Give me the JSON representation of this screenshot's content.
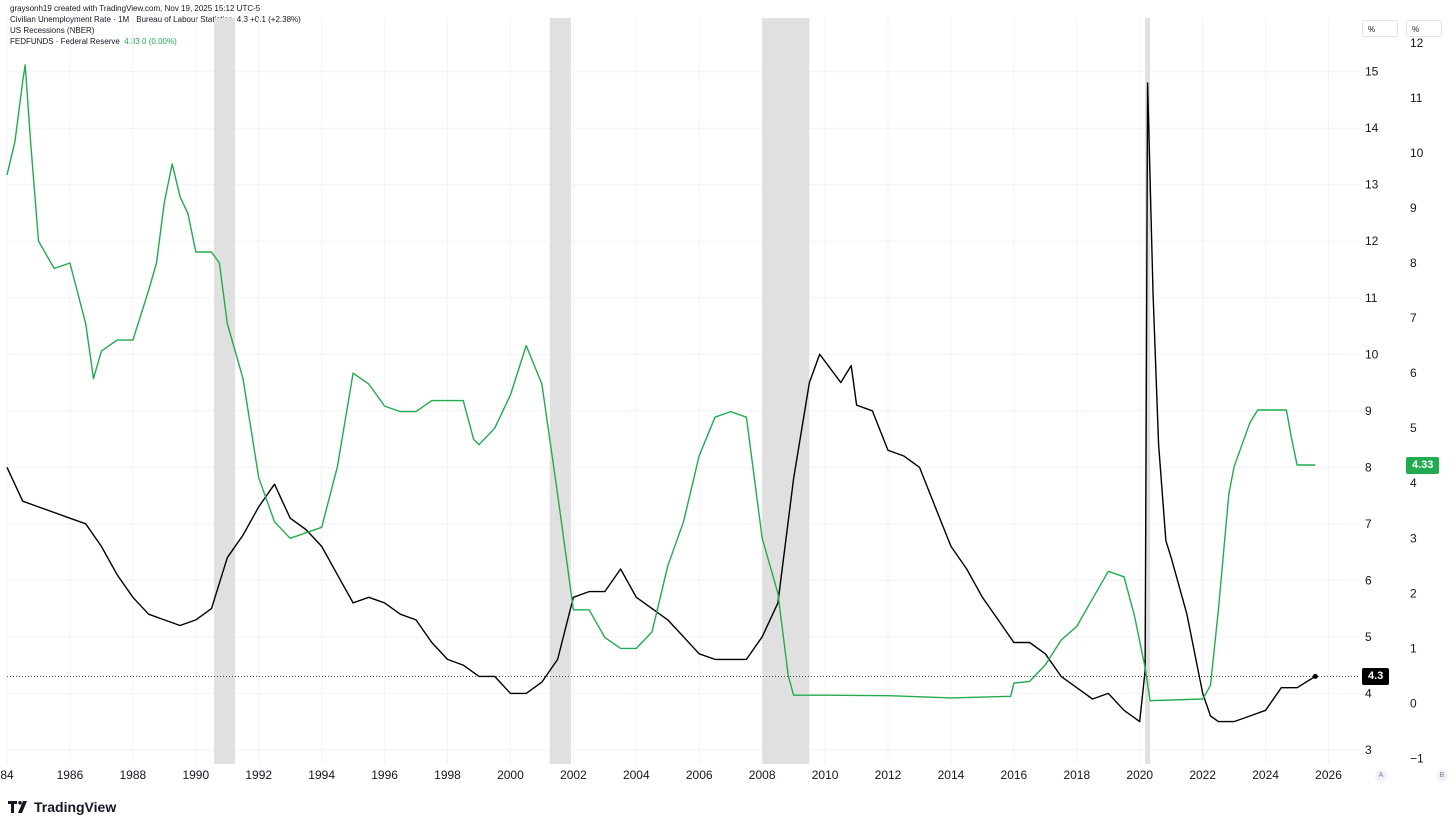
{
  "header": {
    "created_by": "graysonh19 created with TradingView.com, Nov 19, 2025 15:12 UTC-5",
    "series1_label": "Civilian Unemployment Rate · 1M · Bureau of Labour Statistics",
    "series1_values": "4.3  +0.1 (+2.38%)",
    "series2_label": "US Recessions (NBER)",
    "series3_label": "FEDFUNDS · Federal Reserve",
    "series3_values": "4.33  0 (0.00%)"
  },
  "scale_buttons": {
    "left": "%",
    "right": "%"
  },
  "corner_buttons": {
    "a": "A",
    "b": "B"
  },
  "brand": "TradingView",
  "colors": {
    "unemployment": "#000000",
    "fedfunds": "#22ab4e",
    "recession": "#e0e0e0"
  },
  "chart_data": {
    "type": "line",
    "x_range": [
      1984,
      2027
    ],
    "x_ticks": [
      "84",
      "1986",
      "1988",
      "1990",
      "1992",
      "1994",
      "1996",
      "1998",
      "2000",
      "2002",
      "2004",
      "2006",
      "2008",
      "2010",
      "2012",
      "2014",
      "2016",
      "2018",
      "2020",
      "2022",
      "2024",
      "2026"
    ],
    "axes": {
      "unemployment": {
        "ticks": [
          "3",
          "4",
          "5",
          "6",
          "7",
          "8",
          "9",
          "10",
          "11",
          "12",
          "13",
          "14",
          "15"
        ],
        "range": [
          2.75,
          15.95
        ]
      },
      "fedfunds": {
        "ticks": [
          "−1",
          "0",
          "1",
          "2",
          "3",
          "4",
          "5",
          "6",
          "7",
          "8",
          "9",
          "10",
          "11",
          "12"
        ],
        "range": [
          -1.1,
          12.45
        ]
      }
    },
    "recessions": [
      [
        1990.58,
        1991.25
      ],
      [
        2001.25,
        2001.92
      ],
      [
        2008.0,
        2009.5
      ],
      [
        2020.17,
        2020.33
      ]
    ],
    "series": [
      {
        "name": "Civilian Unemployment Rate",
        "axis": "unemployment",
        "last_value": "4.3",
        "points": [
          [
            1984.0,
            8.0
          ],
          [
            1984.5,
            7.4
          ],
          [
            1985.0,
            7.3
          ],
          [
            1985.5,
            7.2
          ],
          [
            1986.0,
            7.1
          ],
          [
            1986.5,
            7.0
          ],
          [
            1987.0,
            6.6
          ],
          [
            1987.5,
            6.1
          ],
          [
            1988.0,
            5.7
          ],
          [
            1988.5,
            5.4
          ],
          [
            1989.0,
            5.3
          ],
          [
            1989.5,
            5.2
          ],
          [
            1990.0,
            5.3
          ],
          [
            1990.5,
            5.5
          ],
          [
            1991.0,
            6.4
          ],
          [
            1991.5,
            6.8
          ],
          [
            1992.0,
            7.3
          ],
          [
            1992.5,
            7.7
          ],
          [
            1993.0,
            7.1
          ],
          [
            1993.5,
            6.9
          ],
          [
            1994.0,
            6.6
          ],
          [
            1994.5,
            6.1
          ],
          [
            1995.0,
            5.6
          ],
          [
            1995.5,
            5.7
          ],
          [
            1996.0,
            5.6
          ],
          [
            1996.5,
            5.4
          ],
          [
            1997.0,
            5.3
          ],
          [
            1997.5,
            4.9
          ],
          [
            1998.0,
            4.6
          ],
          [
            1998.5,
            4.5
          ],
          [
            1999.0,
            4.3
          ],
          [
            1999.5,
            4.3
          ],
          [
            2000.0,
            4.0
          ],
          [
            2000.5,
            4.0
          ],
          [
            2001.0,
            4.2
          ],
          [
            2001.5,
            4.6
          ],
          [
            2002.0,
            5.7
          ],
          [
            2002.5,
            5.8
          ],
          [
            2003.0,
            5.8
          ],
          [
            2003.5,
            6.2
          ],
          [
            2004.0,
            5.7
          ],
          [
            2004.5,
            5.5
          ],
          [
            2005.0,
            5.3
          ],
          [
            2005.5,
            5.0
          ],
          [
            2006.0,
            4.7
          ],
          [
            2006.5,
            4.6
          ],
          [
            2007.0,
            4.6
          ],
          [
            2007.5,
            4.6
          ],
          [
            2008.0,
            5.0
          ],
          [
            2008.5,
            5.6
          ],
          [
            2009.0,
            7.8
          ],
          [
            2009.5,
            9.5
          ],
          [
            2009.83,
            10.0
          ],
          [
            2010.5,
            9.5
          ],
          [
            2010.83,
            9.8
          ],
          [
            2011.0,
            9.1
          ],
          [
            2011.5,
            9.0
          ],
          [
            2012.0,
            8.3
          ],
          [
            2012.5,
            8.2
          ],
          [
            2013.0,
            8.0
          ],
          [
            2013.5,
            7.3
          ],
          [
            2014.0,
            6.6
          ],
          [
            2014.5,
            6.2
          ],
          [
            2015.0,
            5.7
          ],
          [
            2015.5,
            5.3
          ],
          [
            2016.0,
            4.9
          ],
          [
            2016.5,
            4.9
          ],
          [
            2017.0,
            4.7
          ],
          [
            2017.5,
            4.3
          ],
          [
            2018.0,
            4.1
          ],
          [
            2018.5,
            3.9
          ],
          [
            2019.0,
            4.0
          ],
          [
            2019.5,
            3.7
          ],
          [
            2020.0,
            3.5
          ],
          [
            2020.17,
            4.4
          ],
          [
            2020.25,
            14.8
          ],
          [
            2020.42,
            11.1
          ],
          [
            2020.6,
            8.4
          ],
          [
            2020.83,
            6.7
          ],
          [
            2021.0,
            6.4
          ],
          [
            2021.5,
            5.4
          ],
          [
            2022.0,
            4.0
          ],
          [
            2022.25,
            3.6
          ],
          [
            2022.5,
            3.5
          ],
          [
            2023.0,
            3.5
          ],
          [
            2023.5,
            3.6
          ],
          [
            2024.0,
            3.7
          ],
          [
            2024.5,
            4.1
          ],
          [
            2025.0,
            4.1
          ],
          [
            2025.58,
            4.3
          ]
        ]
      },
      {
        "name": "FEDFUNDS",
        "axis": "fedfunds",
        "last_value": "4.33",
        "points": [
          [
            1984.0,
            9.6
          ],
          [
            1984.25,
            10.2
          ],
          [
            1984.5,
            11.3
          ],
          [
            1984.58,
            11.6
          ],
          [
            1984.75,
            10.2
          ],
          [
            1985.0,
            8.4
          ],
          [
            1985.5,
            7.9
          ],
          [
            1986.0,
            8.0
          ],
          [
            1986.5,
            6.9
          ],
          [
            1986.75,
            5.9
          ],
          [
            1987.0,
            6.4
          ],
          [
            1987.5,
            6.6
          ],
          [
            1988.0,
            6.6
          ],
          [
            1988.5,
            7.5
          ],
          [
            1988.75,
            8.0
          ],
          [
            1989.0,
            9.1
          ],
          [
            1989.25,
            9.8
          ],
          [
            1989.5,
            9.2
          ],
          [
            1989.75,
            8.9
          ],
          [
            1990.0,
            8.2
          ],
          [
            1990.5,
            8.2
          ],
          [
            1990.75,
            8.0
          ],
          [
            1991.0,
            6.9
          ],
          [
            1991.5,
            5.9
          ],
          [
            1992.0,
            4.1
          ],
          [
            1992.5,
            3.3
          ],
          [
            1993.0,
            3.0
          ],
          [
            1993.5,
            3.1
          ],
          [
            1994.0,
            3.2
          ],
          [
            1994.5,
            4.3
          ],
          [
            1995.0,
            6.0
          ],
          [
            1995.5,
            5.8
          ],
          [
            1996.0,
            5.4
          ],
          [
            1996.5,
            5.3
          ],
          [
            1997.0,
            5.3
          ],
          [
            1997.5,
            5.5
          ],
          [
            1998.0,
            5.5
          ],
          [
            1998.5,
            5.5
          ],
          [
            1998.83,
            4.8
          ],
          [
            1999.0,
            4.7
          ],
          [
            1999.5,
            5.0
          ],
          [
            2000.0,
            5.6
          ],
          [
            2000.5,
            6.5
          ],
          [
            2001.0,
            5.8
          ],
          [
            2001.5,
            3.8
          ],
          [
            2002.0,
            1.7
          ],
          [
            2002.5,
            1.7
          ],
          [
            2003.0,
            1.2
          ],
          [
            2003.5,
            1.0
          ],
          [
            2004.0,
            1.0
          ],
          [
            2004.5,
            1.3
          ],
          [
            2005.0,
            2.5
          ],
          [
            2005.5,
            3.3
          ],
          [
            2006.0,
            4.5
          ],
          [
            2006.5,
            5.2
          ],
          [
            2007.0,
            5.3
          ],
          [
            2007.5,
            5.2
          ],
          [
            2008.0,
            3.0
          ],
          [
            2008.5,
            2.0
          ],
          [
            2008.83,
            0.5
          ],
          [
            2009.0,
            0.15
          ],
          [
            2010.0,
            0.15
          ],
          [
            2012.0,
            0.14
          ],
          [
            2014.0,
            0.1
          ],
          [
            2015.9,
            0.13
          ],
          [
            2016.0,
            0.37
          ],
          [
            2016.5,
            0.4
          ],
          [
            2017.0,
            0.7
          ],
          [
            2017.5,
            1.15
          ],
          [
            2018.0,
            1.4
          ],
          [
            2018.5,
            1.9
          ],
          [
            2019.0,
            2.4
          ],
          [
            2019.5,
            2.3
          ],
          [
            2019.83,
            1.6
          ],
          [
            2020.17,
            0.65
          ],
          [
            2020.33,
            0.05
          ],
          [
            2022.0,
            0.08
          ],
          [
            2022.25,
            0.33
          ],
          [
            2022.5,
            1.7
          ],
          [
            2022.83,
            3.8
          ],
          [
            2023.0,
            4.3
          ],
          [
            2023.5,
            5.1
          ],
          [
            2023.75,
            5.33
          ],
          [
            2024.66,
            5.33
          ],
          [
            2024.83,
            4.8
          ],
          [
            2025.0,
            4.33
          ],
          [
            2025.58,
            4.33
          ]
        ]
      }
    ]
  }
}
